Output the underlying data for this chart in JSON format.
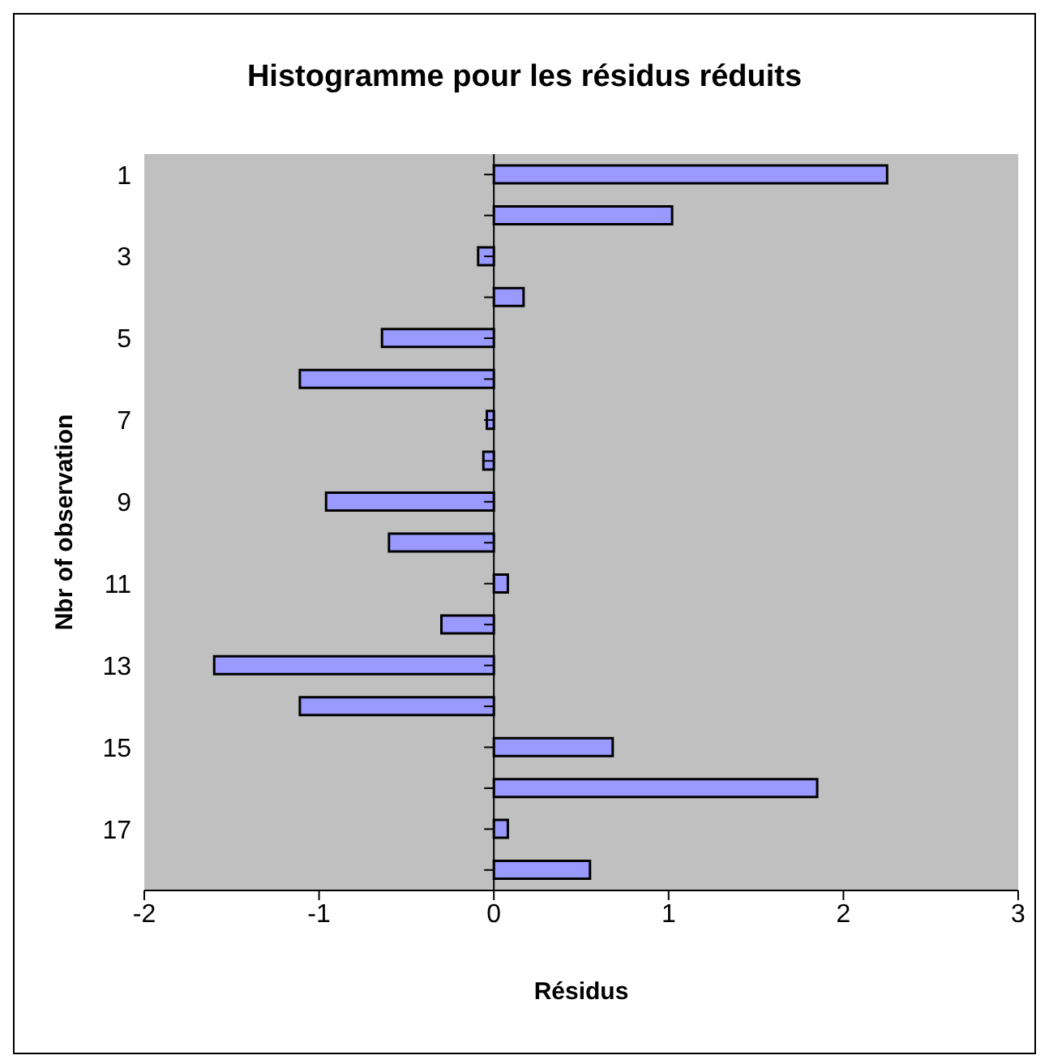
{
  "chart_data": {
    "type": "bar",
    "orientation": "horizontal",
    "title": "Histogramme pour les résidus réduits",
    "xlabel": "Résidus",
    "ylabel": "Nbr of observation",
    "categories": [
      "1",
      null,
      "3",
      null,
      "5",
      null,
      "7",
      null,
      "9",
      null,
      "11",
      null,
      "13",
      null,
      "15",
      null,
      "17",
      null
    ],
    "values": [
      2.25,
      1.02,
      -0.09,
      0.17,
      -0.64,
      -1.11,
      -0.04,
      -0.06,
      -0.96,
      -0.6,
      0.08,
      -0.3,
      -1.6,
      -1.11,
      0.68,
      1.85,
      0.08,
      0.55
    ],
    "color": "#9999ff",
    "xlim": [
      -2,
      3
    ],
    "xticks": [
      -2,
      -1,
      0,
      1,
      2,
      3
    ],
    "ref_lines": [
      {
        "axis": "x",
        "value": 0,
        "color": "#000000"
      }
    ],
    "grid": false
  }
}
